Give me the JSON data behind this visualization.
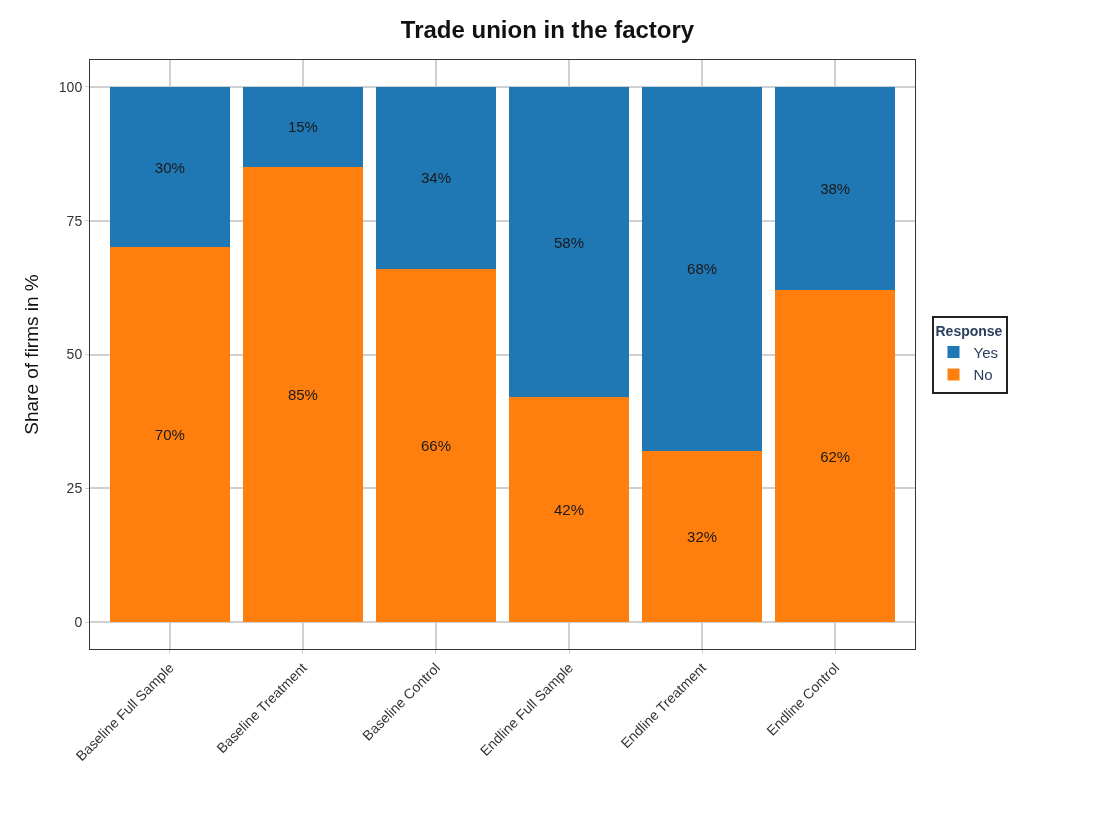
{
  "chart_data": {
    "type": "bar",
    "title": "Trade union in the factory",
    "ylabel": "Share of firms in %",
    "legend_title": "Response",
    "categories": [
      "Baseline Full Sample",
      "Baseline Treatment",
      "Baseline Control",
      "Endline Full Sample",
      "Endline Treatment",
      "Endline Control"
    ],
    "stacked": true,
    "series": [
      {
        "name": "No",
        "color": "#ff7f0e",
        "values": [
          70,
          85,
          66,
          42,
          32,
          62
        ],
        "value_labels": [
          "70%",
          "85%",
          "66%",
          "42%",
          "32%",
          "62%"
        ]
      },
      {
        "name": "Yes",
        "color": "#1f77b4",
        "values": [
          30,
          15,
          34,
          58,
          68,
          38
        ],
        "value_labels": [
          "30%",
          "15%",
          "34%",
          "58%",
          "68%",
          "38%"
        ]
      }
    ],
    "ylim": [
      -5,
      105
    ],
    "yticks": [
      0,
      25,
      50,
      75,
      100
    ],
    "grid": true,
    "legend": "right"
  }
}
